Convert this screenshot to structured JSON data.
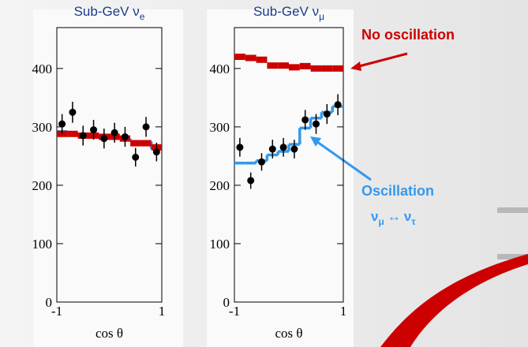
{
  "chart_data": [
    {
      "type": "step",
      "title": "Sub-GeV ν",
      "title_sub": "e",
      "x_label": "cos θ",
      "x": [
        -0.9,
        -0.7,
        -0.5,
        -0.3,
        -0.1,
        0.1,
        0.3,
        0.5,
        0.7,
        0.9
      ],
      "xlim": [
        -1,
        1
      ],
      "xticks": [
        -1,
        1
      ],
      "ylim": [
        0,
        470
      ],
      "yticks": [
        0,
        100,
        200,
        300,
        400
      ],
      "series": [
        {
          "color": "#000000",
          "values": [
            305,
            325,
            285,
            295,
            280,
            290,
            283,
            248,
            300,
            257
          ],
          "errors": [
            17,
            18,
            17,
            17,
            17,
            17,
            17,
            16,
            17,
            16
          ]
        },
        {
          "color": "#cc0000",
          "values": [
            288,
            288,
            285,
            285,
            283,
            283,
            280,
            272,
            272,
            265
          ]
        },
        {
          "color": "#3399ee",
          "values": [
            292,
            290,
            287,
            287,
            280,
            282,
            280,
            275,
            275,
            262
          ]
        }
      ]
    },
    {
      "type": "step",
      "title": "Sub-GeV ν",
      "title_sub": "μ",
      "x_label": "cos θ",
      "x": [
        -0.9,
        -0.7,
        -0.5,
        -0.3,
        -0.1,
        0.1,
        0.3,
        0.5,
        0.7,
        0.9
      ],
      "xlim": [
        -1,
        1
      ],
      "xticks": [
        -1,
        1
      ],
      "ylim": [
        0,
        470
      ],
      "yticks": [
        0,
        100,
        200,
        300,
        400
      ],
      "series": [
        {
          "color": "#000000",
          "values": [
            265,
            208,
            240,
            262,
            265,
            262,
            312,
            305,
            322,
            338
          ],
          "errors": [
            16,
            14,
            15,
            16,
            16,
            16,
            17,
            17,
            17,
            18
          ]
        },
        {
          "name": "No oscillation",
          "color": "#cc0000",
          "values": [
            420,
            418,
            415,
            405,
            405,
            402,
            404,
            400,
            400,
            400
          ]
        },
        {
          "name": "Oscillation",
          "color": "#3399ee",
          "values": [
            238,
            238,
            242,
            252,
            258,
            270,
            298,
            315,
            325,
            335
          ]
        }
      ]
    }
  ],
  "oscillation_mode": {
    "nu1": "ν",
    "sub1": "μ",
    "arrow": "↔",
    "nu2": "ν",
    "sub2": "τ"
  }
}
